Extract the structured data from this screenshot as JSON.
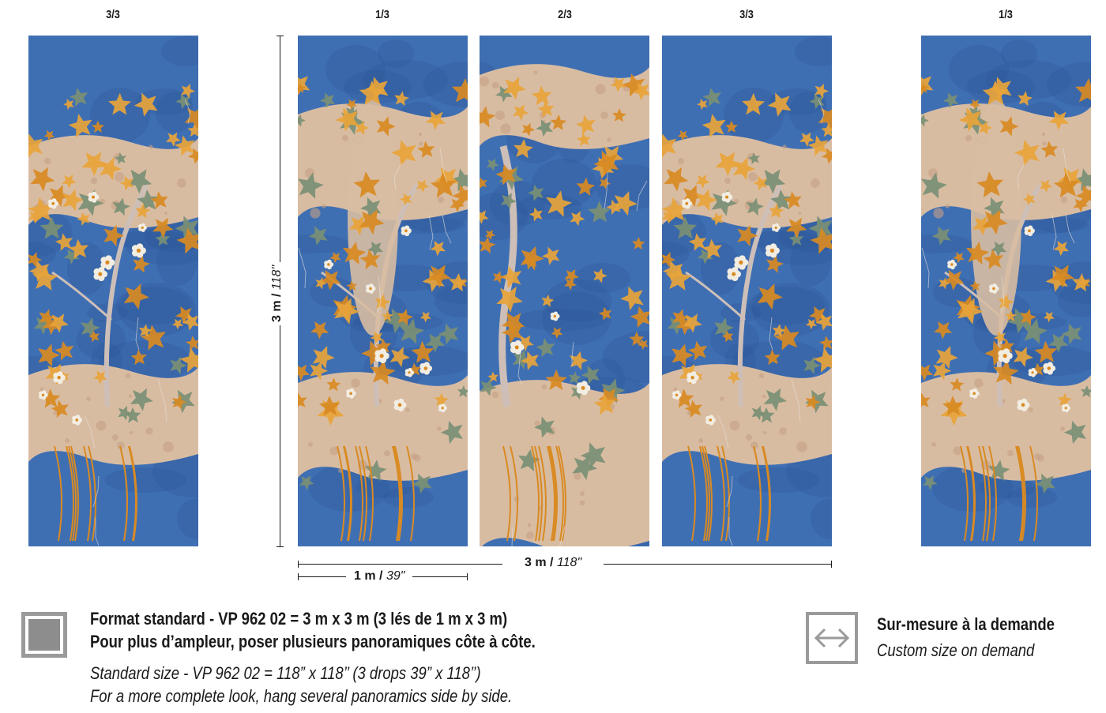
{
  "panels": [
    {
      "label": "3/3",
      "variant": "c"
    },
    {
      "label": "1/3",
      "variant": "a"
    },
    {
      "label": "2/3",
      "variant": "b"
    },
    {
      "label": "3/3",
      "variant": "c"
    },
    {
      "label": "1/3",
      "variant": "a"
    }
  ],
  "dimensions": {
    "height_metric": "3 m",
    "height_imperial": "118\"",
    "total_width_metric": "3 m",
    "total_width_imperial": "118\"",
    "drop_width_metric": "1 m",
    "drop_width_imperial": "39\"",
    "separator": "/"
  },
  "format": {
    "line1": "Format standard - VP 962 02 = 3 m x 3 m (3 lés de 1 m x 3 m)",
    "line2": "Pour plus d’ampleur, poser plusieurs panoramiques côte à côte.",
    "line3": "Standard size - VP 962 02 = 118” x 118’’ (3 drops 39” x 118’’)",
    "line4": "For a more complete look, hang several panoramics side by side.",
    "icon": "square-format-icon"
  },
  "custom": {
    "title": "Sur-mesure à la demande",
    "subtitle": "Custom size on demand",
    "icon": "resize-arrows-icon"
  },
  "colors": {
    "blue": "#3f6fb3",
    "dark_blue": "#2f5a9c",
    "sand": "#d8bca2",
    "orange": "#e8a43a",
    "deep_orange": "#d98a22",
    "green": "#7a8f74",
    "white_flower": "#f2ede2",
    "trunk": "#cdbfb8",
    "icon_gray": "#9a9a9a"
  }
}
